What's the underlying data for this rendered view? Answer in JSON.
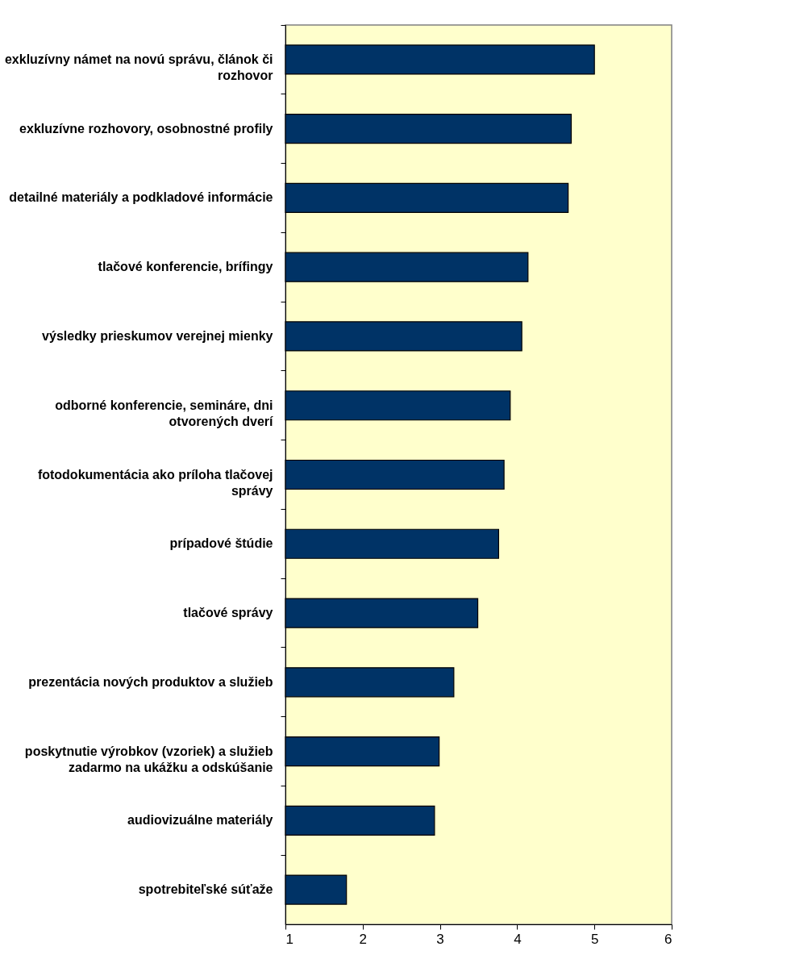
{
  "chart_data": {
    "type": "bar",
    "orientation": "horizontal",
    "categories": [
      "exkluzívny námet na novú správu, článok či\nrozhovor",
      "exkluzívne rozhovory, osobnostné profily",
      "detailné materiály a podkladové informácie",
      "tlačové konferencie, brífingy",
      "výsledky prieskumov verejnej mienky",
      "odborné konferencie, semináre, dni\notvorených dverí",
      "fotodokumentácia ako príloha tlačovej\nsprávy",
      "prípadové štúdie",
      "tlačové správy",
      "prezentácia nových produktov a služieb",
      "poskytnutie výrobkov (vzoriek) a služieb\nzadarmo na ukážku a odskúšanie",
      "audiovizuálne materiály",
      "spotrebiteľské súťaže"
    ],
    "values": [
      5.0,
      4.7,
      4.66,
      4.14,
      4.06,
      3.91,
      3.83,
      3.76,
      3.49,
      3.18,
      2.99,
      2.93,
      1.79
    ],
    "color": "#003366",
    "xlim": [
      1,
      6
    ],
    "xticks": [
      1,
      2,
      3,
      4,
      5,
      6
    ],
    "grid": false
  }
}
